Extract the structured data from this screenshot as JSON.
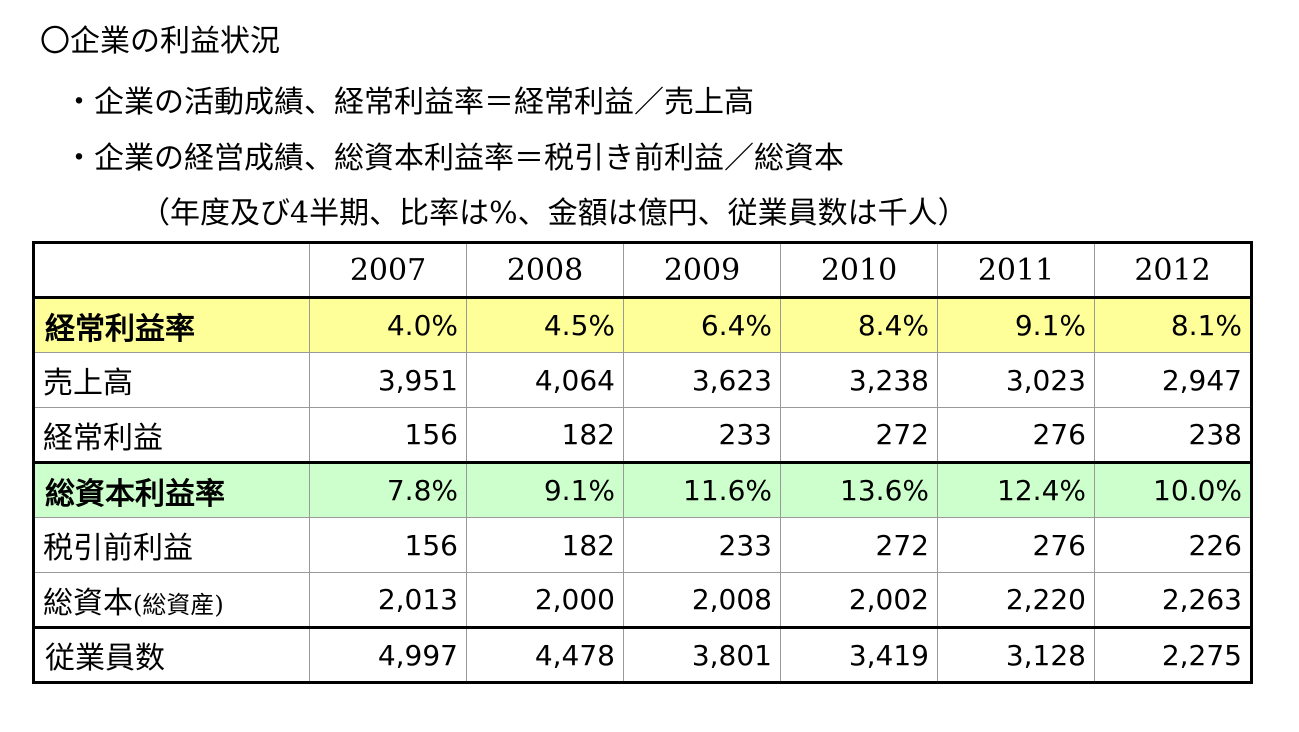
{
  "heading": "〇企業の利益状況",
  "bullet1": "・企業の活動成績、経常利益率＝経常利益／売上高",
  "bullet2": "・企業の経営成績、総資本利益率＝税引き前利益／総資本",
  "note": "（年度及び4半期、比率は%、金額は億円、従業員数は千人）",
  "table": {
    "years": [
      "2007",
      "2008",
      "2009",
      "2010",
      "2011",
      "2012"
    ],
    "rows": {
      "ordinary_margin": {
        "label": "経常利益率",
        "values": [
          "4.0%",
          "4.5%",
          "6.4%",
          "8.4%",
          "9.1%",
          "8.1%"
        ]
      },
      "sales": {
        "label": "売上高",
        "values": [
          "3,951",
          "4,064",
          "3,623",
          "3,238",
          "3,023",
          "2,947"
        ]
      },
      "ordinary_profit": {
        "label": "経常利益",
        "values": [
          "156",
          "182",
          "233",
          "272",
          "276",
          "238"
        ]
      },
      "roa": {
        "label": "総資本利益率",
        "values": [
          "7.8%",
          "9.1%",
          "11.6%",
          "13.6%",
          "12.4%",
          "10.0%"
        ]
      },
      "pretax_profit": {
        "label": "税引前利益",
        "values": [
          "156",
          "182",
          "233",
          "272",
          "276",
          "226"
        ]
      },
      "total_capital": {
        "label": "総資本",
        "label_note": "(総資産)",
        "values": [
          "2,013",
          "2,000",
          "2,008",
          "2,002",
          "2,220",
          "2,263"
        ]
      },
      "employees": {
        "label": "従業員数",
        "values": [
          "4,997",
          "4,478",
          "3,801",
          "3,419",
          "3,128",
          "2,275"
        ]
      }
    }
  },
  "colors": {
    "ratio_row_1": "#ffff99",
    "ratio_row_2": "#ccffcc"
  }
}
